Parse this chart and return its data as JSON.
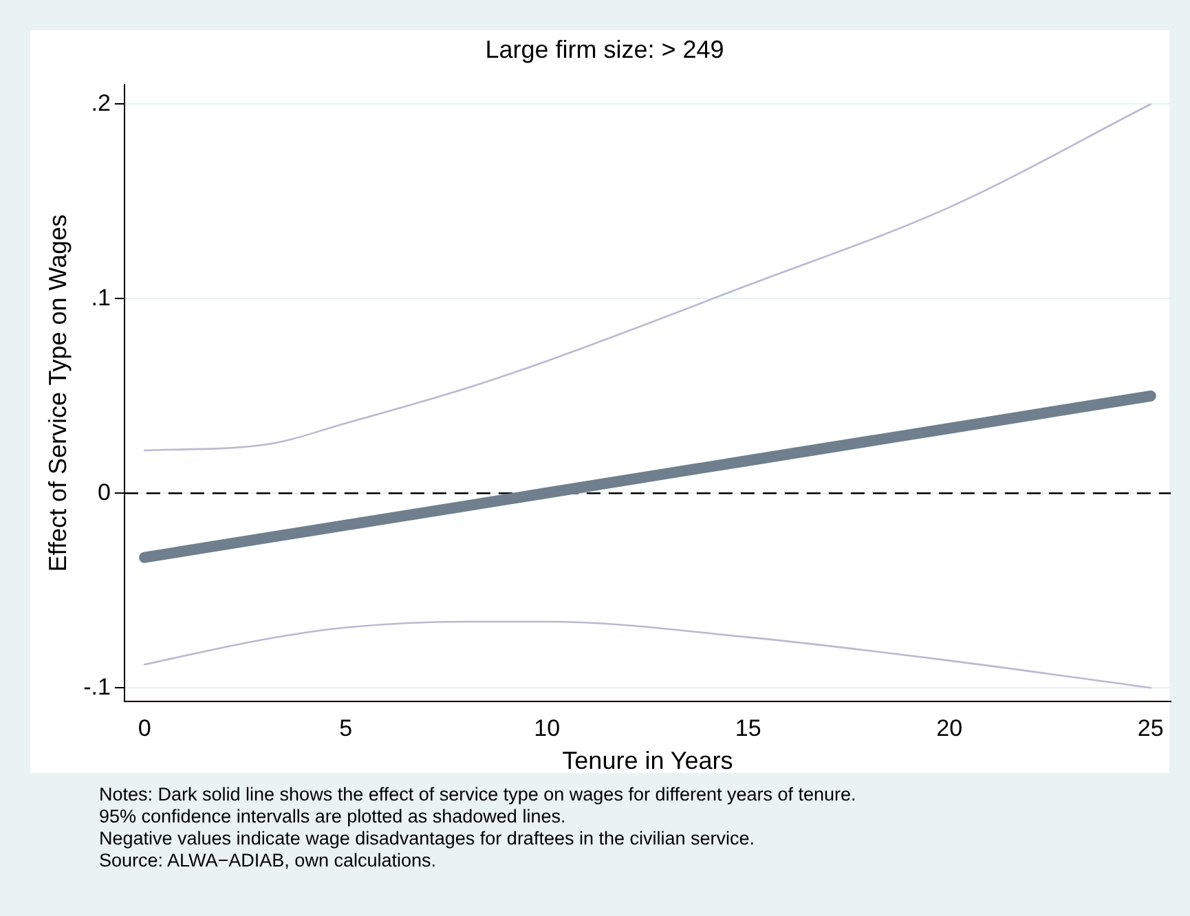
{
  "chart_data": {
    "type": "line",
    "title": "Large firm size: > 249",
    "xlabel": "Tenure in Years",
    "ylabel": "Effect of Service Type on Wages",
    "x": [
      0,
      3,
      5,
      8,
      10,
      15,
      20,
      25
    ],
    "series": [
      {
        "color": "#b9b9d2",
        "values": [
          0.022,
          0.025,
          0.036,
          0.054,
          0.068,
          0.107,
          0.147,
          0.2
        ]
      },
      {
        "color": "#b9b9d2",
        "values": [
          -0.088,
          -0.075,
          -0.069,
          -0.066,
          -0.066,
          -0.074,
          -0.086,
          -0.1
        ]
      },
      {
        "color": "#6f7f8e",
        "values": [
          -0.033,
          -0.023,
          -0.0164,
          -0.0065,
          0.0002,
          0.0168,
          0.0334,
          0.05
        ]
      }
    ],
    "xlim": [
      -0.5,
      25.5
    ],
    "xticks": [
      0,
      5,
      10,
      15,
      20,
      25
    ],
    "ylim": [
      -0.107,
      0.21
    ],
    "yticks": [
      {
        "value": -0.1,
        "label": "-.1"
      },
      {
        "value": 0,
        "label": "0"
      },
      {
        "value": 0.1,
        "label": ".1"
      },
      {
        "value": 0.2,
        "label": ".2"
      }
    ],
    "grid": "y",
    "legend": false,
    "marker": "none",
    "line_style": "solid",
    "ref_lines": [
      {
        "axis": "y",
        "value": 0,
        "color": "#000000",
        "line_style": "dashed"
      }
    ],
    "annotations": [
      "Notes: Dark solid line shows the effect of service type on wages for different years of tenure.",
      "95% confidence intervalls are plotted as shadowed lines.",
      "Negative values indicate wage disadvantages for draftees in the civilian service.",
      "Source: ALWA−ADIAB, own calculations."
    ]
  }
}
